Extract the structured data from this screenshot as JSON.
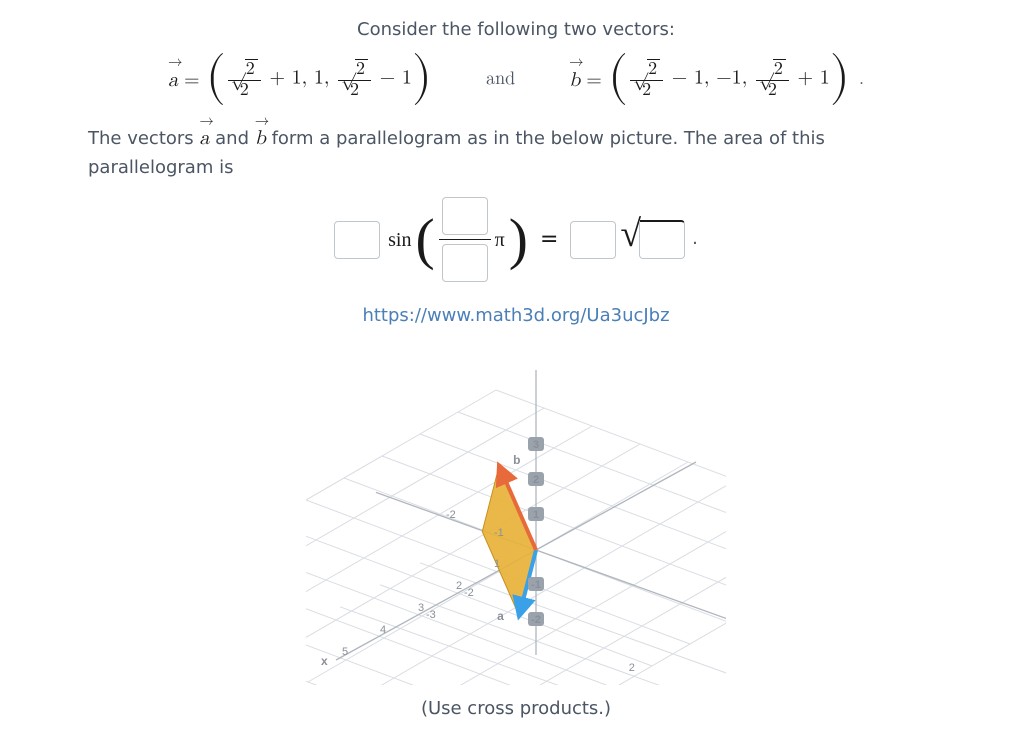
{
  "prompt_intro": "Consider the following two vectors:",
  "and_word": "and",
  "body_text": "The vectors a⃗ and b⃗ form a parallelogram as in the below picture. The area of this parallelogram is",
  "vector_a": {
    "name": "a",
    "terms": [
      "√2 / 2 + 1",
      "1",
      "√2 / 2 − 1"
    ],
    "sqrt_arg": "2",
    "denom": "2",
    "plus": "+ 1",
    "middle": "1",
    "minus": "− 1"
  },
  "vector_b": {
    "name": "b",
    "terms": [
      "√2 / 2 − 1",
      "−1",
      "√2 / 2 + 1"
    ],
    "sqrt_arg": "2",
    "denom": "2",
    "minus": "− 1",
    "middle": "−1",
    "plus": "+ 1"
  },
  "answer_form": {
    "fn": "sin",
    "pi": "π",
    "eq": "="
  },
  "link": {
    "text": "https://www.math3d.org/Ua3ucJbz"
  },
  "hint": "(Use cross products.)",
  "diagram": {
    "x_label": "x",
    "b_label": "b",
    "a_label": "a",
    "x_ticks": [
      "5",
      "4",
      "3",
      "2",
      "1",
      "2",
      "3"
    ],
    "z_ticks": [
      "3",
      "2",
      "1",
      "-1",
      "-1",
      "-2",
      "-2",
      "-3"
    ],
    "neg_y": "-1",
    "neg_y2": "-2",
    "parallelogram_color": "#e7b23a",
    "vec_a_color": "#3aa0e8",
    "vec_b_color": "#e86a3a",
    "grid_color": "#d8dde3",
    "bg": "#ffffff"
  }
}
